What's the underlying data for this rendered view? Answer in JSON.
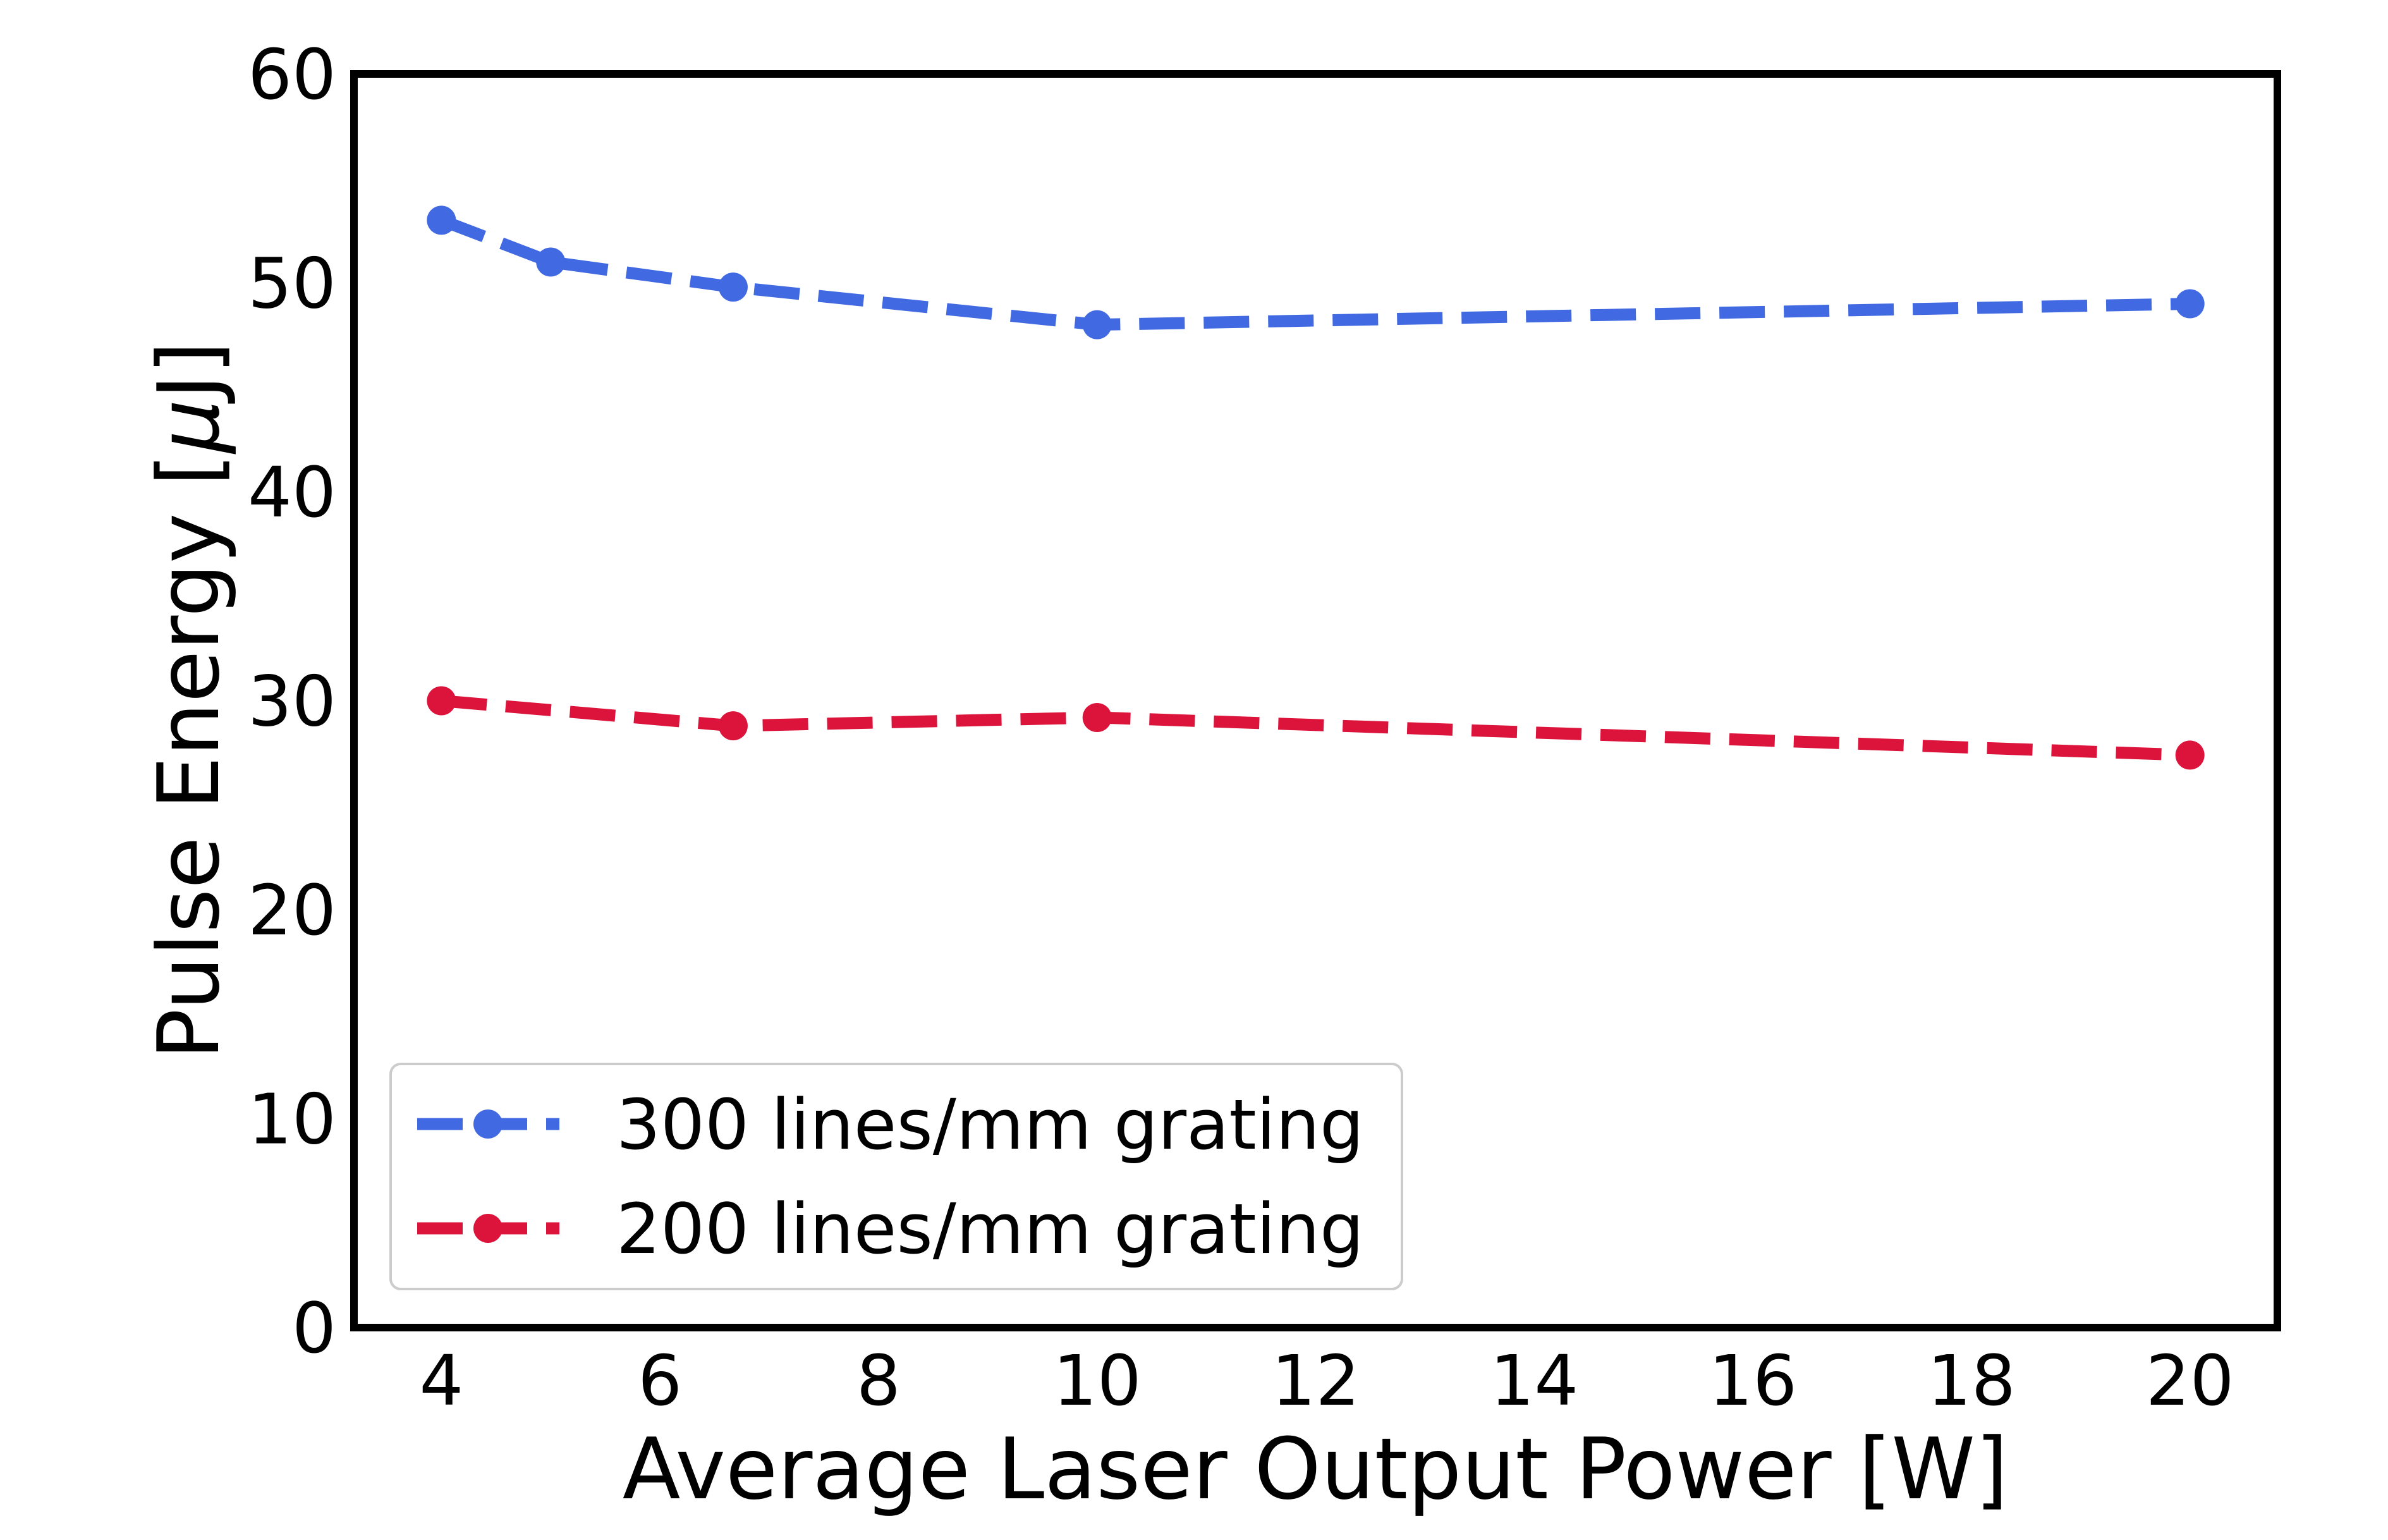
{
  "chart_data": {
    "type": "line",
    "title": "",
    "xlabel": "Average Laser Output Power [W]",
    "ylabel_text": "Pulse Energy [",
    "ylabel_symbol": "μ",
    "ylabel_unit": "J]",
    "xlim": [
      3.2,
      20.8
    ],
    "ylim": [
      0,
      60
    ],
    "xticks": [
      4,
      6,
      8,
      10,
      12,
      14,
      16,
      18,
      20
    ],
    "yticks": [
      0,
      10,
      20,
      30,
      40,
      50,
      60
    ],
    "grid": false,
    "legend_position": "lower-left",
    "series": [
      {
        "name": "300 lines/mm grating",
        "color": "#4169E1",
        "x": [
          4,
          5,
          6.67,
          10,
          20
        ],
        "y": [
          53.0,
          51.0,
          49.8,
          48.0,
          49.0
        ]
      },
      {
        "name": "200 lines/mm grating",
        "color": "#DC143C",
        "x": [
          4,
          6.67,
          10,
          20
        ],
        "y": [
          30.0,
          28.8,
          29.2,
          27.4
        ]
      }
    ]
  }
}
